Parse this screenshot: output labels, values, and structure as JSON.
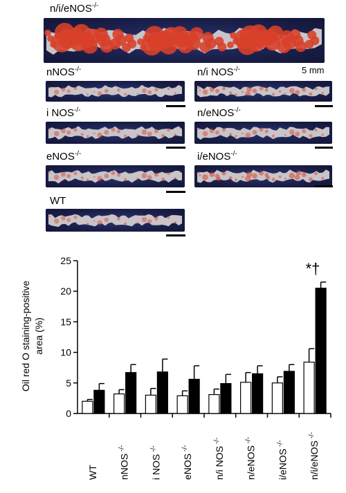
{
  "panels": [
    {
      "label": "n/i/eNOS",
      "sup": "-/-",
      "key": "nie",
      "stain": 0.9
    },
    {
      "label": "nNOS",
      "sup": "-/-",
      "key": "n",
      "stain": 0.15
    },
    {
      "label": "n/i NOS",
      "sup": "-/-",
      "key": "ni",
      "stain": 0.25
    },
    {
      "label": "i NOS",
      "sup": "-/-",
      "key": "i",
      "stain": 0.2
    },
    {
      "label": "n/eNOS",
      "sup": "-/-",
      "key": "ne",
      "stain": 0.2
    },
    {
      "label": "eNOS",
      "sup": "-/-",
      "key": "e",
      "stain": 0.2
    },
    {
      "label": "i/eNOS",
      "sup": "-/-",
      "key": "ie",
      "stain": 0.3
    },
    {
      "label": "WT",
      "sup": "",
      "key": "wt",
      "stain": 0.15
    }
  ],
  "scale_text": "5 mm",
  "colors": {
    "specimen_bg": "#1a1f4a",
    "stain_red": "#d8402a",
    "tissue_pale": "#c9c4c8"
  },
  "chart_data": {
    "type": "bar",
    "categories": [
      "WT",
      "nNOS -/-",
      "i NOS -/-",
      "eNOS -/-",
      "n/i NOS -/-",
      "n/eNOS -/-",
      "i/eNOS -/-",
      "n/i/eNOS -/-"
    ],
    "series": [
      {
        "fill": "white",
        "values": [
          2.0,
          3.2,
          3.0,
          2.9,
          3.1,
          5.1,
          5.0,
          8.4
        ],
        "errors": [
          0.3,
          0.7,
          1.1,
          0.8,
          0.9,
          1.6,
          1.0,
          2.2
        ]
      },
      {
        "fill": "black",
        "values": [
          3.8,
          6.7,
          6.8,
          5.6,
          4.9,
          6.5,
          6.9,
          20.5
        ],
        "errors": [
          1.1,
          1.3,
          2.1,
          2.2,
          1.5,
          1.3,
          1.1,
          1.0
        ]
      }
    ],
    "ylabel": "Oil red O staining-positive area (%)",
    "ylim": [
      0,
      25
    ],
    "yticks": [
      0,
      5,
      10,
      15,
      20,
      25
    ],
    "annotation": "*†",
    "annotation_category": "n/i/eNOS -/-"
  }
}
